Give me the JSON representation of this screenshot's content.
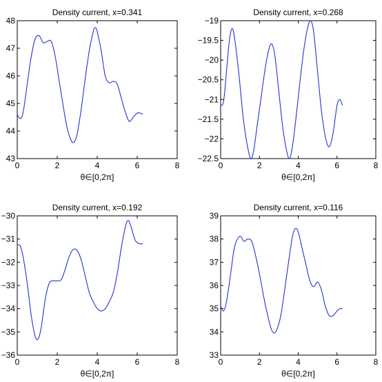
{
  "chart_data": [
    {
      "type": "line",
      "title": "Density current, x=0.341",
      "xlabel": "θ∈[0,2π]",
      "ylabel": "",
      "xlim": [
        0,
        8
      ],
      "ylim": [
        43,
        48
      ],
      "xticks": [
        "0",
        "2",
        "4",
        "6",
        "8"
      ],
      "yticks": [
        "43",
        "44",
        "45",
        "46",
        "47",
        "48"
      ],
      "grid": false,
      "series_color": "#2233cc",
      "x": [
        0,
        0.15,
        0.3,
        0.5,
        0.7,
        0.9,
        1.1,
        1.3,
        1.5,
        1.7,
        1.9,
        2.1,
        2.3,
        2.5,
        2.7,
        2.85,
        3.0,
        3.2,
        3.4,
        3.6,
        3.8,
        3.9,
        4.0,
        4.2,
        4.4,
        4.6,
        4.8,
        5.0,
        5.2,
        5.4,
        5.6,
        5.8,
        6.0,
        6.15,
        6.28
      ],
      "y": [
        44.6,
        44.45,
        44.7,
        45.7,
        46.7,
        47.35,
        47.45,
        47.2,
        47.25,
        47.25,
        46.7,
        45.8,
        44.9,
        44.1,
        43.65,
        43.6,
        43.9,
        44.8,
        45.9,
        46.9,
        47.6,
        47.75,
        47.6,
        46.9,
        46.0,
        45.75,
        45.8,
        45.7,
        45.2,
        44.7,
        44.35,
        44.5,
        44.65,
        44.65,
        44.6
      ]
    },
    {
      "type": "line",
      "title": "Density current, x=0.268",
      "xlabel": "θ∈[0,2π]",
      "ylabel": "",
      "xlim": [
        0,
        8
      ],
      "ylim": [
        -22.5,
        -19
      ],
      "xticks": [
        "0",
        "2",
        "4",
        "6",
        "8"
      ],
      "yticks": [
        "-22.5",
        "-22",
        "-21.5",
        "-21",
        "-20.5",
        "-20",
        "-19.5",
        "-19"
      ],
      "grid": false,
      "series_color": "#2233cc",
      "x": [
        0,
        0.15,
        0.3,
        0.45,
        0.6,
        0.75,
        0.95,
        1.15,
        1.35,
        1.55,
        1.7,
        1.9,
        2.1,
        2.3,
        2.5,
        2.65,
        2.8,
        3.0,
        3.2,
        3.4,
        3.55,
        3.7,
        3.9,
        4.1,
        4.3,
        4.5,
        4.65,
        4.8,
        5.0,
        5.2,
        5.4,
        5.6,
        5.8,
        6.0,
        6.15,
        6.28
      ],
      "y": [
        -21.15,
        -21.05,
        -20.3,
        -19.5,
        -19.2,
        -19.55,
        -20.4,
        -21.4,
        -22.1,
        -22.5,
        -22.3,
        -21.6,
        -20.9,
        -20.2,
        -19.7,
        -19.6,
        -19.9,
        -20.8,
        -21.7,
        -22.3,
        -22.5,
        -22.2,
        -21.4,
        -20.5,
        -19.7,
        -19.15,
        -19.0,
        -19.3,
        -20.3,
        -21.3,
        -21.95,
        -22.2,
        -21.85,
        -21.15,
        -21.0,
        -21.15
      ]
    },
    {
      "type": "line",
      "title": "Density current, x=0.192",
      "xlabel": "θ∈[0,2π]",
      "ylabel": "",
      "xlim": [
        0,
        8
      ],
      "ylim": [
        -36,
        -30
      ],
      "xticks": [
        "0",
        "2",
        "4",
        "6",
        "8"
      ],
      "yticks": [
        "-36",
        "-35",
        "-34",
        "-33",
        "-32",
        "-31",
        "-30"
      ],
      "grid": false,
      "series_color": "#2233cc",
      "x": [
        0,
        0.15,
        0.3,
        0.5,
        0.7,
        0.9,
        1.05,
        1.2,
        1.4,
        1.6,
        1.8,
        2.0,
        2.2,
        2.4,
        2.6,
        2.8,
        3.0,
        3.2,
        3.4,
        3.6,
        3.8,
        4.0,
        4.2,
        4.4,
        4.6,
        4.8,
        5.0,
        5.2,
        5.4,
        5.55,
        5.7,
        5.9,
        6.1,
        6.28
      ],
      "y": [
        -31.25,
        -31.3,
        -31.8,
        -32.9,
        -34.3,
        -35.2,
        -35.3,
        -34.8,
        -33.6,
        -32.9,
        -32.8,
        -32.8,
        -32.75,
        -32.3,
        -31.75,
        -31.45,
        -31.5,
        -31.9,
        -32.6,
        -33.3,
        -33.7,
        -34.0,
        -34.1,
        -34.0,
        -33.7,
        -33.3,
        -32.5,
        -31.4,
        -30.5,
        -30.2,
        -30.5,
        -31.05,
        -31.2,
        -31.2
      ]
    },
    {
      "type": "line",
      "title": "Density current, x=0.116",
      "xlabel": "θ∈[0,2π]",
      "ylabel": "",
      "xlim": [
        0,
        8
      ],
      "ylim": [
        33,
        39
      ],
      "xticks": [
        "0",
        "2",
        "4",
        "6",
        "8"
      ],
      "yticks": [
        "33",
        "34",
        "35",
        "36",
        "37",
        "38",
        "39"
      ],
      "grid": false,
      "series_color": "#2233cc",
      "x": [
        0,
        0.15,
        0.3,
        0.5,
        0.7,
        0.9,
        1.05,
        1.2,
        1.4,
        1.6,
        1.8,
        2.0,
        2.2,
        2.4,
        2.6,
        2.75,
        2.9,
        3.1,
        3.3,
        3.5,
        3.7,
        3.85,
        4.0,
        4.2,
        4.4,
        4.6,
        4.8,
        5.0,
        5.2,
        5.4,
        5.6,
        5.8,
        6.0,
        6.15,
        6.28
      ],
      "y": [
        35.1,
        34.9,
        35.3,
        36.4,
        37.6,
        38.05,
        38.1,
        37.9,
        38.0,
        37.9,
        37.3,
        36.5,
        35.6,
        34.8,
        34.15,
        33.95,
        34.1,
        34.7,
        35.8,
        37.0,
        38.1,
        38.45,
        38.3,
        37.6,
        36.9,
        36.2,
        35.95,
        36.15,
        35.8,
        35.1,
        34.7,
        34.7,
        34.9,
        35.0,
        35.0
      ]
    }
  ]
}
